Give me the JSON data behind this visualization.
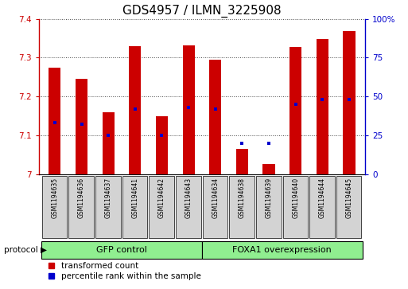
{
  "title": "GDS4957 / ILMN_3225908",
  "samples": [
    "GSM1194635",
    "GSM1194636",
    "GSM1194637",
    "GSM1194641",
    "GSM1194642",
    "GSM1194643",
    "GSM1194634",
    "GSM1194638",
    "GSM1194639",
    "GSM1194640",
    "GSM1194644",
    "GSM1194645"
  ],
  "transformed_count": [
    7.275,
    7.245,
    7.16,
    7.33,
    7.148,
    7.332,
    7.295,
    7.065,
    7.025,
    7.328,
    7.348,
    7.368
  ],
  "percentile_rank": [
    33,
    32,
    25,
    42,
    25,
    43,
    42,
    20,
    20,
    45,
    48,
    48
  ],
  "groups": [
    "GFP control",
    "FOXA1 overexpression"
  ],
  "group_sizes": [
    6,
    6
  ],
  "bar_color": "#cc0000",
  "dot_color": "#0000cc",
  "ylim_left": [
    7.0,
    7.4
  ],
  "ylim_right": [
    0,
    100
  ],
  "yticks_left": [
    7.0,
    7.1,
    7.2,
    7.3,
    7.4
  ],
  "ytick_labels_left": [
    "7",
    "7.1",
    "7.2",
    "7.3",
    "7.4"
  ],
  "yticks_right": [
    0,
    25,
    50,
    75,
    100
  ],
  "ytick_labels_right": [
    "0",
    "25",
    "50",
    "75",
    "100%"
  ],
  "grid_color": "#444444",
  "title_fontsize": 11,
  "tick_fontsize": 7.5,
  "group_box_color": "#90ee90",
  "sample_box_color": "#d3d3d3",
  "legend_red_label": "transformed count",
  "legend_blue_label": "percentile rank within the sample",
  "bar_width": 0.45
}
